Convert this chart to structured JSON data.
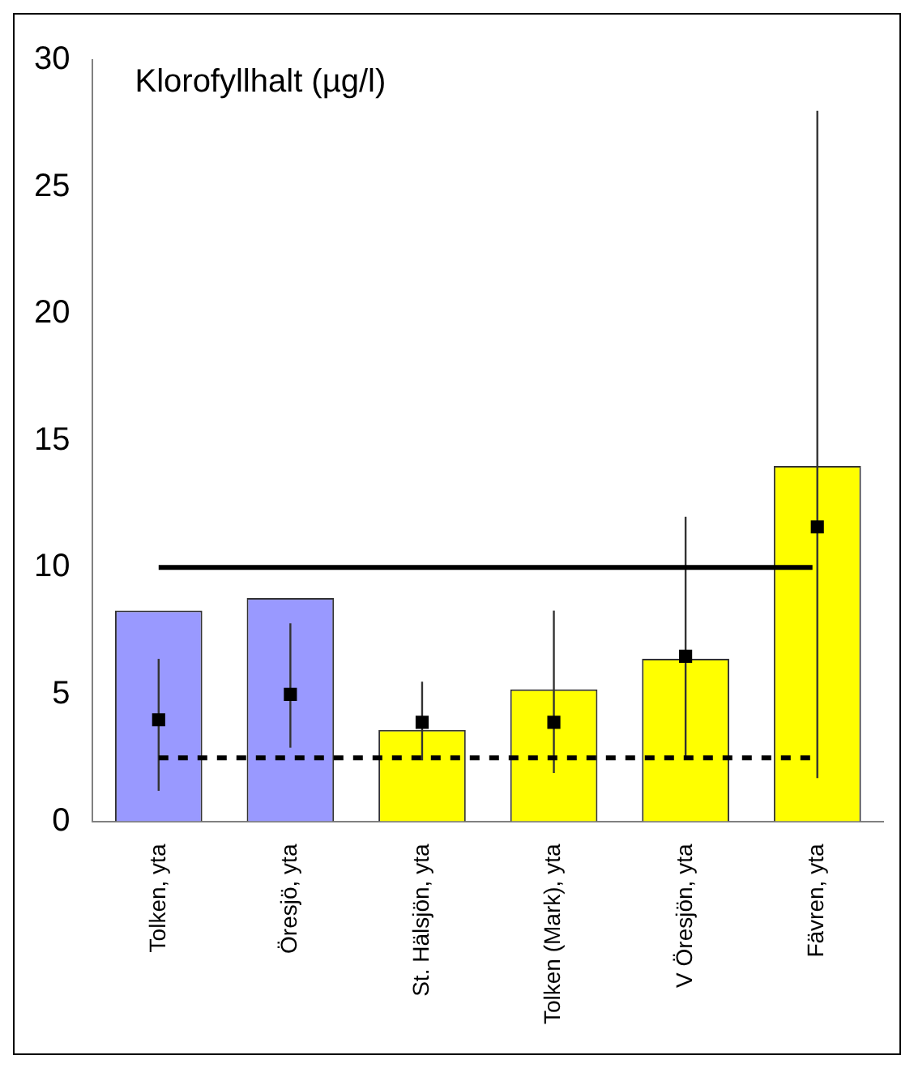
{
  "chart_data": {
    "type": "bar",
    "title": "Klorofyllhalt (µg/l)",
    "categories": [
      "Tolken, yta",
      "Öresjö, yta",
      "St. Hälsjön, yta",
      "Tolken (Mark), yta",
      "V Öresjön, yta",
      "Fävren, yta"
    ],
    "series": [
      {
        "colors": [
          "#9999ff",
          "#9999ff",
          "#ffff00",
          "#ffff00",
          "#ffff00",
          "#ffff00"
        ],
        "values": [
          8.3,
          8.8,
          3.6,
          5.2,
          6.4,
          14.0
        ]
      },
      {
        "type": "scatter",
        "x": [
          "Tolken, yta",
          "Öresjö, yta",
          "St. Hälsjön, yta",
          "Tolken (Mark), yta",
          "V Öresjön, yta",
          "Fävren, yta"
        ],
        "marker": "square",
        "color": "#000000",
        "values": [
          4.0,
          5.0,
          3.9,
          3.9,
          6.5,
          11.6
        ],
        "errors": [
          [
            1.2,
            6.4
          ],
          [
            2.9,
            7.8
          ],
          [
            2.4,
            5.5
          ],
          [
            1.9,
            8.3
          ],
          [
            2.5,
            12.0
          ],
          [
            1.7,
            28.0
          ]
        ]
      }
    ],
    "ylim": [
      0,
      30
    ],
    "yticks": [
      0,
      5,
      10,
      15,
      20,
      25,
      30
    ],
    "ref_lines": [
      {
        "axis": "y",
        "value": 10,
        "color": "#000000",
        "line_style": "solid"
      },
      {
        "axis": "y",
        "value": 2.5,
        "color": "#000000",
        "line_style": "dashed"
      }
    ]
  }
}
